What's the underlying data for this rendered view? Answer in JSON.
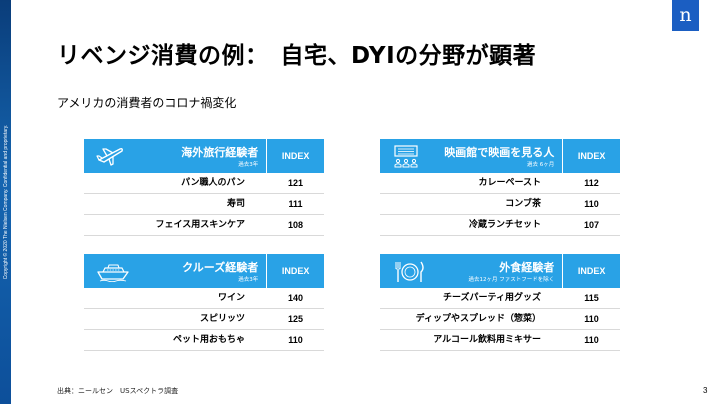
{
  "slide": {
    "title": "リベンジ消費の例：　自宅、DYIの分野が顕著",
    "subtitle": "アメリカの消費者のコロナ禍変化",
    "copyright": "Copyright © 2020 The Nielsen Company. Confidential and proprietary.",
    "logo_text": "n",
    "source": "出典：ニールセン　USスペクトラ調査",
    "page_number": "3"
  },
  "panels": [
    {
      "icon": "airplane-icon",
      "title": "海外旅行経験者",
      "sub": "過去3年",
      "index_label": "INDEX",
      "rows": [
        {
          "label": "パン職人のパン",
          "value": "121"
        },
        {
          "label": "寿司",
          "value": "111"
        },
        {
          "label": "フェイス用スキンケア",
          "value": "108"
        }
      ]
    },
    {
      "icon": "cinema-icon",
      "title": "映画館で映画を見る人",
      "sub": "過去 6ヶ月",
      "index_label": "INDEX",
      "rows": [
        {
          "label": "カレーペースト",
          "value": "112"
        },
        {
          "label": "コンブ茶",
          "value": "110"
        },
        {
          "label": "冷蔵ランチセット",
          "value": "107"
        }
      ]
    },
    {
      "icon": "cruise-ship-icon",
      "title": "クルーズ経験者",
      "sub": "過去3年",
      "index_label": "INDEX",
      "rows": [
        {
          "label": "ワイン",
          "value": "140"
        },
        {
          "label": "スピリッツ",
          "value": "125"
        },
        {
          "label": "ペット用おもちゃ",
          "value": "110"
        }
      ]
    },
    {
      "icon": "dining-icon",
      "title": "外食経験者",
      "sub": "過去12ヶ月 ファストフードを除く",
      "index_label": "INDEX",
      "rows": [
        {
          "label": "チーズパーティ用グッズ",
          "value": "115"
        },
        {
          "label": "ディップやスプレッド（惣菜）",
          "value": "110"
        },
        {
          "label": "アルコール飲料用ミキサー",
          "value": "110"
        }
      ]
    }
  ]
}
